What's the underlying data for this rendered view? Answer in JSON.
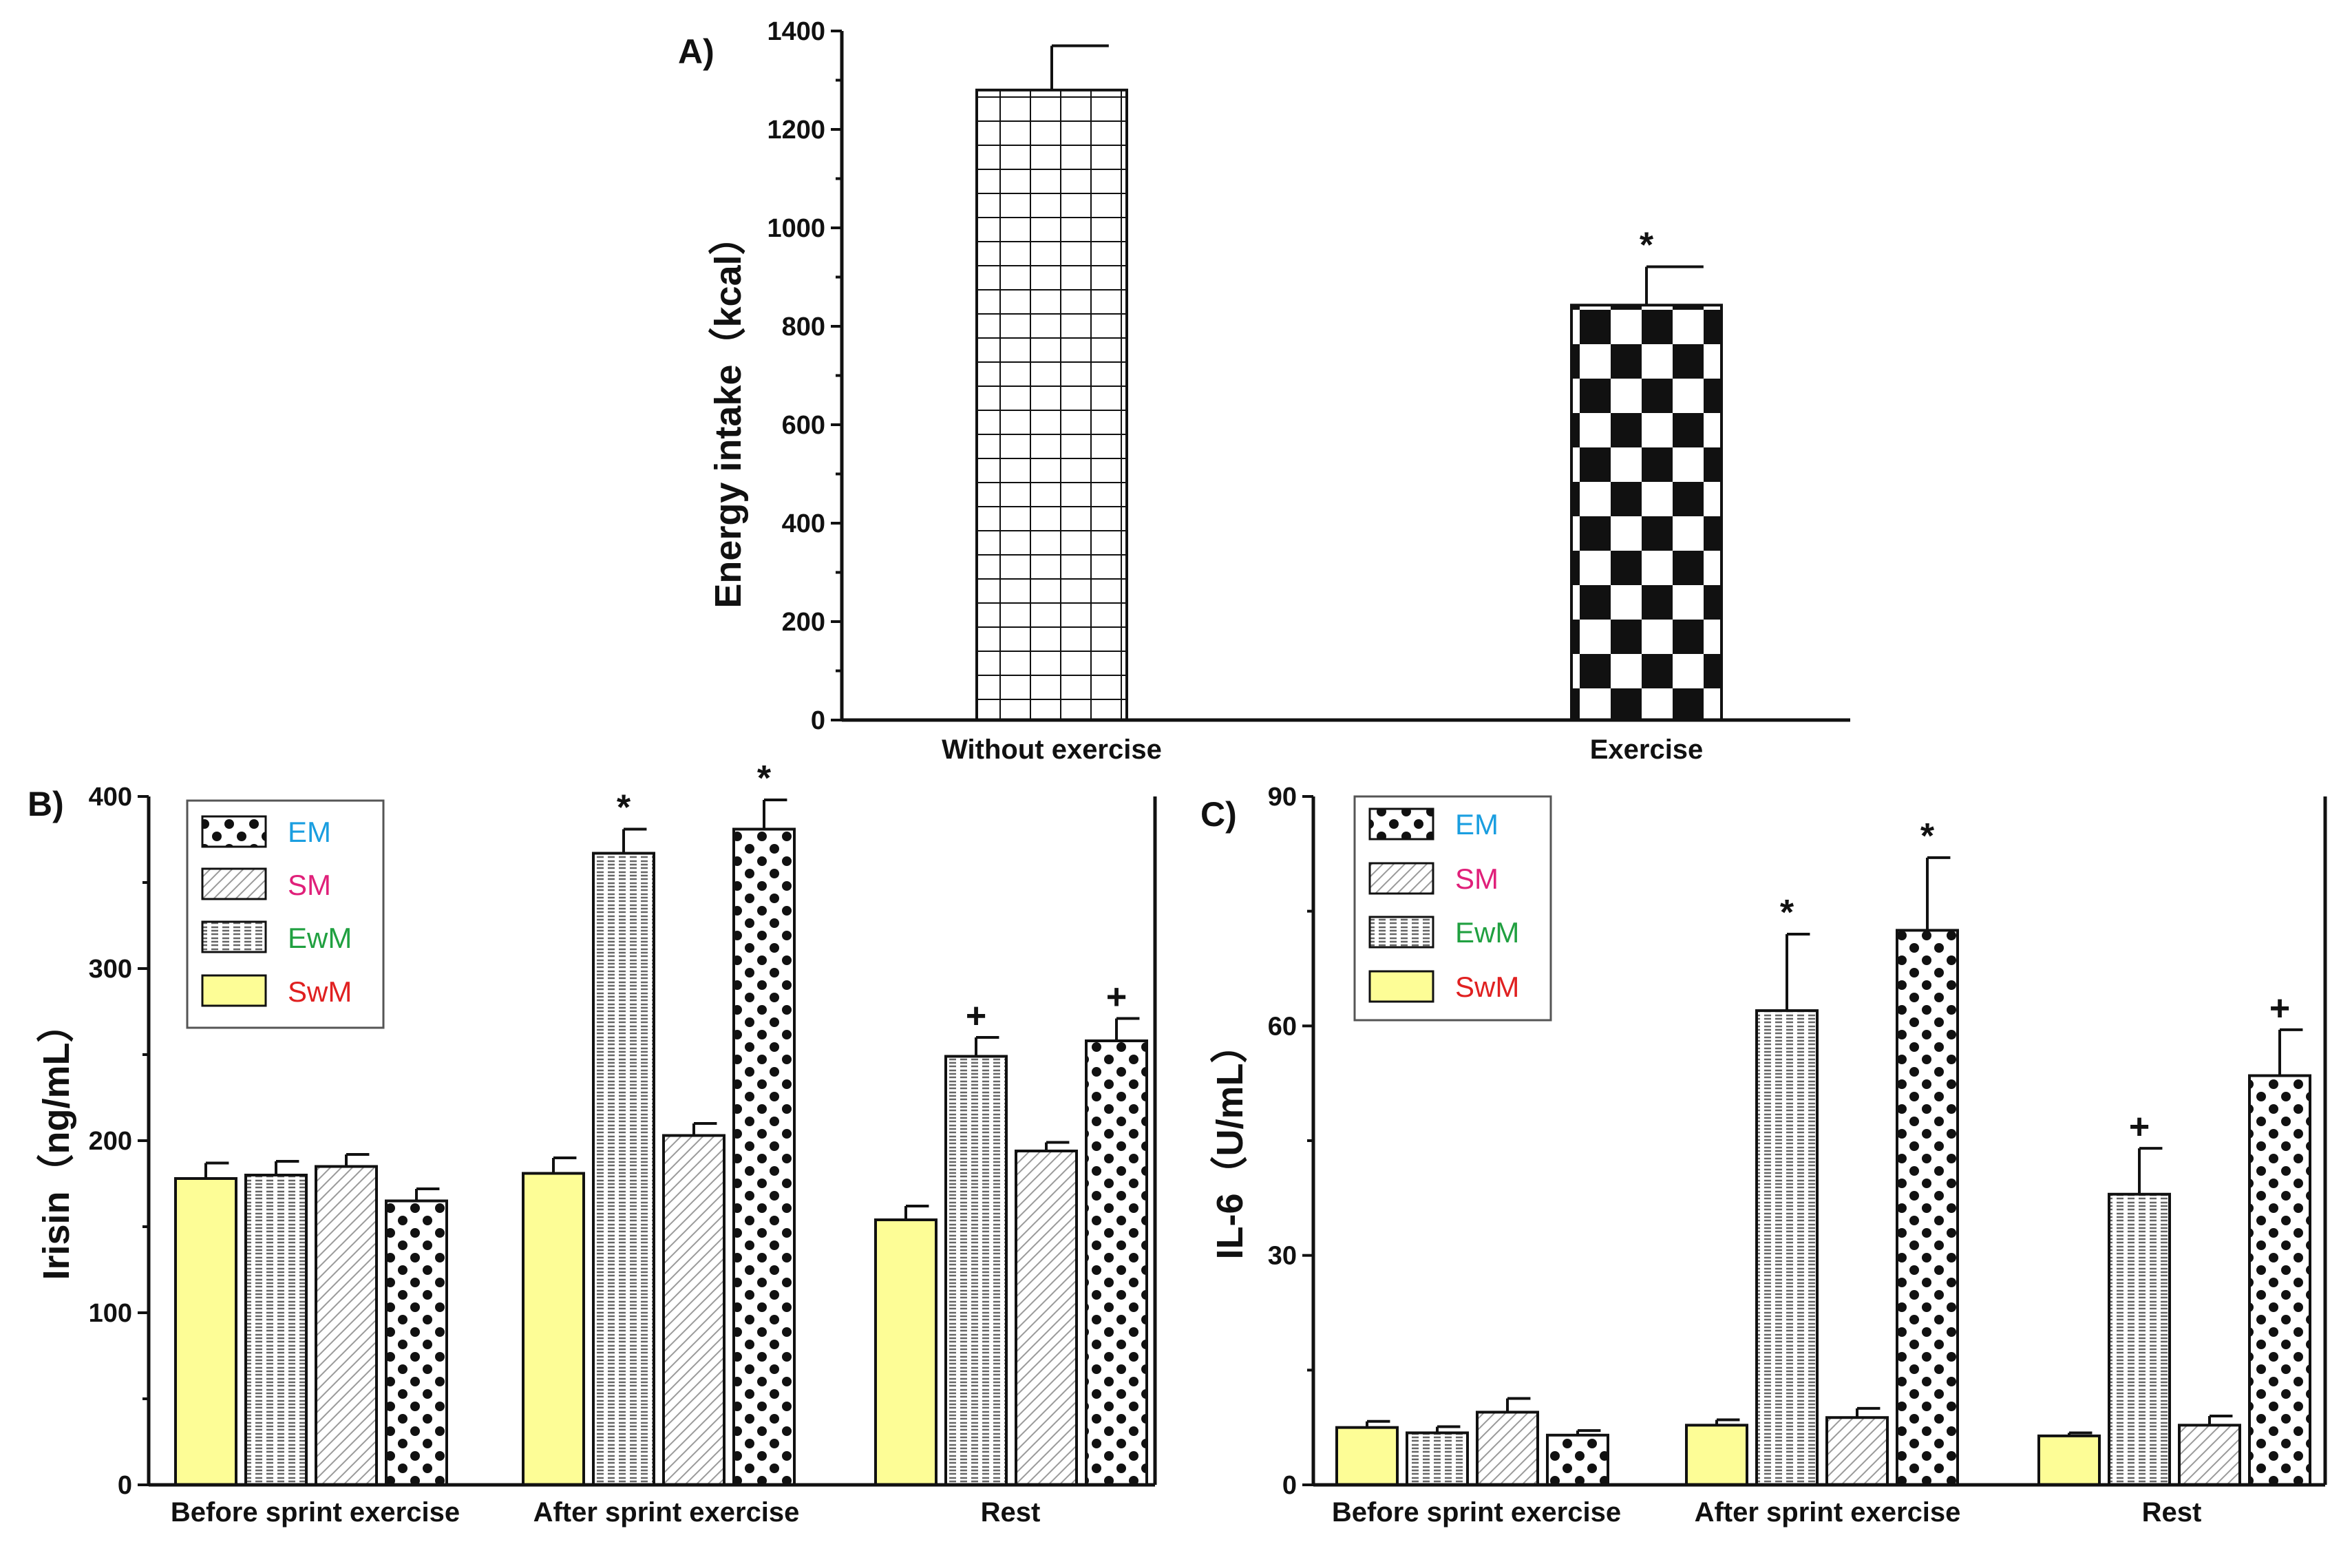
{
  "panels": [
    {
      "id": "A",
      "label": "A)",
      "ylabel": "Energy intake（kcal）",
      "ylim": [
        0,
        1400
      ],
      "yticks": [
        0,
        200,
        400,
        600,
        800,
        1000,
        1200,
        1400
      ],
      "minor_step": 100
    },
    {
      "id": "B",
      "label": "B)",
      "ylabel": "Irisin（ng/mL）",
      "ylim": [
        0,
        400
      ],
      "yticks": [
        0,
        100,
        200,
        300,
        400
      ],
      "minor_step": 50
    },
    {
      "id": "C",
      "label": "C)",
      "ylabel": "IL-6（U/mL）",
      "ylim": [
        0,
        90
      ],
      "yticks": [
        0,
        30,
        60,
        90
      ],
      "minor_step": 15
    }
  ],
  "legend": {
    "entries": [
      {
        "key": "EM",
        "label": "EM",
        "color": "#1a9ee0"
      },
      {
        "key": "SM",
        "label": "SM",
        "color": "#e0207a"
      },
      {
        "key": "EwM",
        "label": "EwM",
        "color": "#20a040"
      },
      {
        "key": "SwM",
        "label": "SwM",
        "color": "#e02020"
      }
    ]
  },
  "chart_data": [
    {
      "type": "bar",
      "panel": "A",
      "title": "A)",
      "ylabel": "Energy intake（kcal）",
      "ylim": [
        0,
        1400
      ],
      "categories": [
        "Without exercise",
        "Exercise"
      ],
      "values": [
        1280,
        843
      ],
      "errors": [
        90,
        78
      ],
      "patterns": [
        "grid",
        "checker"
      ],
      "significance": [
        "",
        "*"
      ]
    },
    {
      "type": "bar",
      "panel": "B",
      "title": "B)",
      "ylabel": "Irisin（ng/mL）",
      "ylim": [
        0,
        400
      ],
      "categories": [
        "Before sprint exercise",
        "After sprint exercise",
        "Rest"
      ],
      "series": [
        {
          "name": "SwM",
          "values": [
            178,
            181,
            154
          ],
          "errors": [
            9,
            9,
            8
          ],
          "significance": [
            "",
            "",
            ""
          ]
        },
        {
          "name": "EwM",
          "values": [
            180,
            367,
            249
          ],
          "errors": [
            8,
            14,
            11
          ],
          "significance": [
            "",
            "*",
            "+"
          ]
        },
        {
          "name": "SM",
          "values": [
            185,
            203,
            194
          ],
          "errors": [
            7,
            7,
            5
          ],
          "significance": [
            "",
            "",
            ""
          ]
        },
        {
          "name": "EM",
          "values": [
            165,
            381,
            258
          ],
          "errors": [
            7,
            17,
            13
          ],
          "significance": [
            "",
            "*",
            "+"
          ]
        }
      ]
    },
    {
      "type": "bar",
      "panel": "C",
      "title": "C)",
      "ylabel": "IL-6（U/mL）",
      "ylim": [
        0,
        90
      ],
      "categories": [
        "Before sprint exercise",
        "After sprint exercise",
        "Rest"
      ],
      "series": [
        {
          "name": "SwM",
          "values": [
            7.5,
            7.8,
            6.4
          ],
          "errors": [
            0.8,
            0.7,
            0.4
          ],
          "significance": [
            "",
            "",
            ""
          ]
        },
        {
          "name": "EwM",
          "values": [
            6.8,
            62,
            38
          ],
          "errors": [
            0.8,
            10,
            6
          ],
          "significance": [
            "",
            "*",
            "+"
          ]
        },
        {
          "name": "SM",
          "values": [
            9.5,
            8.8,
            7.8
          ],
          "errors": [
            1.8,
            1.2,
            1.2
          ],
          "significance": [
            "",
            "",
            ""
          ]
        },
        {
          "name": "EM",
          "values": [
            6.5,
            72.5,
            53.5
          ],
          "errors": [
            0.6,
            9.5,
            6
          ],
          "significance": [
            "",
            "*",
            "+"
          ]
        }
      ]
    }
  ]
}
